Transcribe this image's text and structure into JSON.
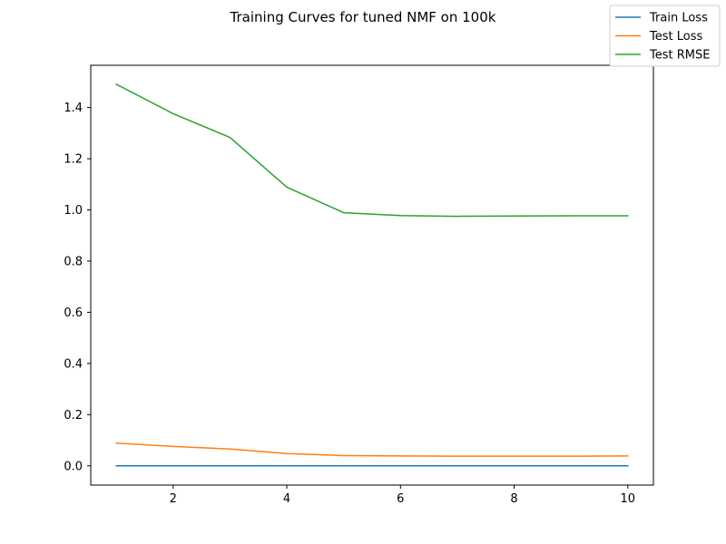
{
  "chart_data": {
    "type": "line",
    "title": "Training Curves for tuned NMF on 100k",
    "xlabel": "",
    "ylabel": "",
    "x": [
      1,
      2,
      3,
      4,
      5,
      6,
      7,
      8,
      9,
      10
    ],
    "xlim": [
      0.55,
      10.45
    ],
    "ylim": [
      -0.075,
      1.565
    ],
    "xticks": [
      2,
      4,
      6,
      8,
      10
    ],
    "xtick_labels": [
      "2",
      "4",
      "6",
      "8",
      "10"
    ],
    "yticks": [
      0.0,
      0.2,
      0.4,
      0.6,
      0.8,
      1.0,
      1.2,
      1.4
    ],
    "ytick_labels": [
      "0.0",
      "0.2",
      "0.4",
      "0.6",
      "0.8",
      "1.0",
      "1.2",
      "1.4"
    ],
    "grid": false,
    "legend_position": "top-right",
    "series": [
      {
        "name": "Train Loss",
        "color": "#1f77b4",
        "values": [
          0.0005,
          0.0005,
          0.0005,
          0.0005,
          0.0005,
          0.0005,
          0.0005,
          0.0005,
          0.0005,
          0.0005
        ]
      },
      {
        "name": "Test Loss",
        "color": "#ff7f0e",
        "values": [
          0.089,
          0.076,
          0.066,
          0.048,
          0.04,
          0.039,
          0.038,
          0.038,
          0.038,
          0.039
        ]
      },
      {
        "name": "Test RMSE",
        "color": "#2ca02c",
        "values": [
          1.491,
          1.376,
          1.283,
          1.089,
          0.989,
          0.978,
          0.975,
          0.976,
          0.977,
          0.977
        ]
      }
    ]
  }
}
